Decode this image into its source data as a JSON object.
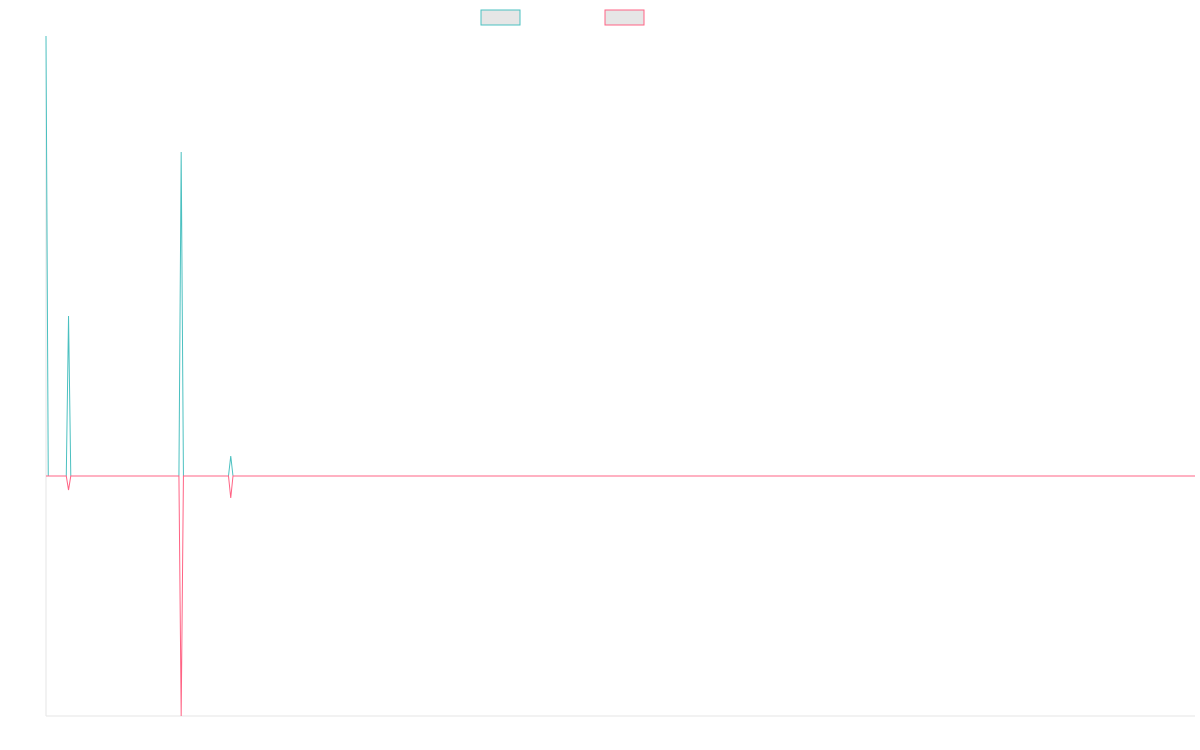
{
  "chart_data": {
    "type": "line",
    "x": [
      0,
      1,
      9,
      10,
      11,
      59,
      60,
      61,
      81,
      82,
      83,
      510
    ],
    "xlim": [
      0,
      510
    ],
    "ylim": [
      -6,
      11
    ],
    "series": [
      {
        "color": "#4bc0c0",
        "values": [
          11,
          0,
          0,
          4,
          0,
          0,
          8.1,
          0,
          0,
          0.5,
          0,
          0
        ]
      },
      {
        "color": "#ff6384",
        "values": [
          0,
          0,
          0,
          -0.35,
          0,
          0,
          -6,
          0,
          0,
          -0.55,
          0,
          0
        ]
      }
    ]
  }
}
